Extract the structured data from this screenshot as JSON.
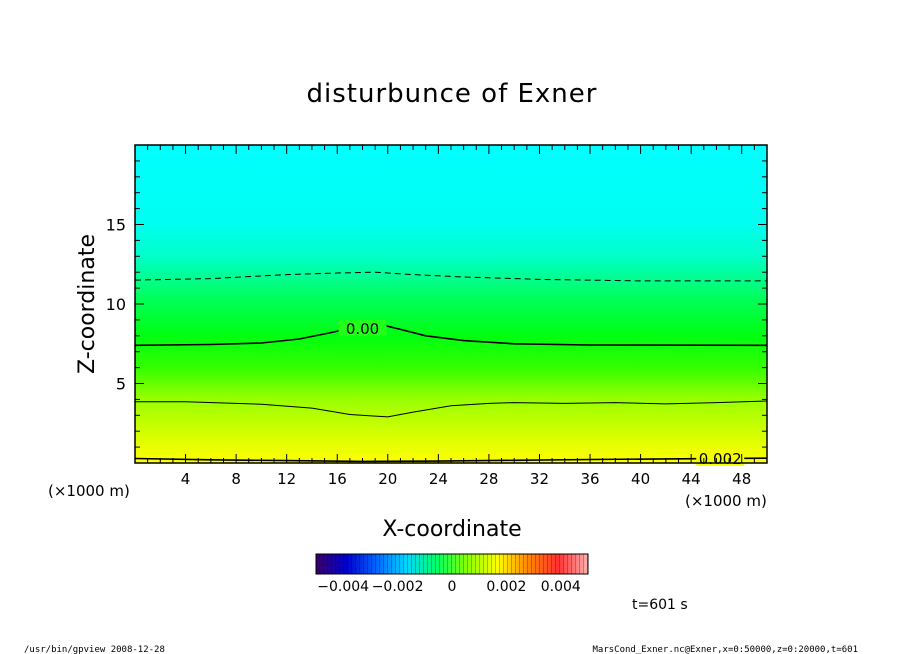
{
  "chart_data": {
    "type": "heatmap",
    "title": "disturbunce of Exner",
    "xlabel": "X-coordinate",
    "ylabel": "Z-coordinate",
    "x_unit_left": "(×1000 m)",
    "x_unit_right": "(×1000 m)",
    "xlim": [
      0,
      50
    ],
    "ylim": [
      0,
      20
    ],
    "x_ticks": [
      4,
      8,
      12,
      16,
      20,
      24,
      28,
      32,
      36,
      40,
      44,
      48
    ],
    "y_ticks": [
      5,
      10,
      15
    ],
    "x_tick_labels": [
      "4",
      "8",
      "12",
      "16",
      "20",
      "24",
      "28",
      "32",
      "36",
      "40",
      "44",
      "48"
    ],
    "y_tick_labels": [
      "5",
      "10",
      "15"
    ],
    "contours": [
      {
        "style": "solid",
        "width": 1.6,
        "label": "0.002",
        "points": [
          [
            0,
            0.28
          ],
          [
            6,
            0.2
          ],
          [
            12,
            0.15
          ],
          [
            18,
            0.1
          ],
          [
            24,
            0.12
          ],
          [
            30,
            0.17
          ],
          [
            36,
            0.22
          ],
          [
            42,
            0.26
          ],
          [
            50,
            0.3
          ]
        ]
      },
      {
        "style": "solid",
        "width": 1.0,
        "label": "",
        "points": [
          [
            0,
            3.85
          ],
          [
            4,
            3.85
          ],
          [
            10,
            3.7
          ],
          [
            14,
            3.45
          ],
          [
            17,
            3.05
          ],
          [
            19,
            2.95
          ],
          [
            20,
            2.9
          ],
          [
            22,
            3.2
          ],
          [
            25,
            3.6
          ],
          [
            28,
            3.75
          ],
          [
            30,
            3.8
          ],
          [
            34,
            3.75
          ],
          [
            38,
            3.8
          ],
          [
            42,
            3.72
          ],
          [
            46,
            3.8
          ],
          [
            50,
            3.9
          ]
        ]
      },
      {
        "style": "solid",
        "width": 1.6,
        "label": "0.00",
        "points": [
          [
            0,
            7.4
          ],
          [
            6,
            7.45
          ],
          [
            10,
            7.55
          ],
          [
            13,
            7.8
          ],
          [
            15.5,
            8.2
          ],
          [
            18,
            8.65
          ],
          [
            19.5,
            8.7
          ],
          [
            21,
            8.4
          ],
          [
            23,
            8.0
          ],
          [
            26,
            7.7
          ],
          [
            30,
            7.5
          ],
          [
            36,
            7.42
          ],
          [
            50,
            7.4
          ]
        ]
      },
      {
        "style": "dashed",
        "width": 1.0,
        "label": "",
        "points": [
          [
            0,
            11.5
          ],
          [
            6,
            11.6
          ],
          [
            12,
            11.85
          ],
          [
            16,
            11.95
          ],
          [
            19,
            12.0
          ],
          [
            22,
            11.85
          ],
          [
            26,
            11.7
          ],
          [
            32,
            11.55
          ],
          [
            40,
            11.45
          ],
          [
            50,
            11.45
          ]
        ]
      }
    ],
    "colorbar": {
      "vmin": -0.005,
      "vmax": 0.005,
      "tick_values": [
        -0.004,
        -0.002,
        0,
        0.002,
        0.004
      ],
      "tick_labels": [
        "−0.004",
        "−0.002",
        "0",
        "0.002",
        "0.004"
      ],
      "colors": [
        "#3a006a",
        "#0000cc",
        "#0066ff",
        "#00d8ff",
        "#00ff66",
        "#88ff00",
        "#ffff00",
        "#ff8800",
        "#ff3030",
        "#ffb0b0"
      ]
    },
    "field_colors_by_z": [
      {
        "z": 0,
        "color": "#ffff00"
      },
      {
        "z": 1.5,
        "color": "#ddff00"
      },
      {
        "z": 4,
        "color": "#99ff00"
      },
      {
        "z": 6,
        "color": "#33ff00"
      },
      {
        "z": 8,
        "color": "#00ff10"
      },
      {
        "z": 10.5,
        "color": "#00ff60"
      },
      {
        "z": 13,
        "color": "#00ffc8"
      },
      {
        "z": 15,
        "color": "#00fff0"
      },
      {
        "z": 20,
        "color": "#00ffff"
      }
    ]
  },
  "annotations": {
    "time": "t=601 s",
    "footer_left": "/usr/bin/gpview   2008-12-28",
    "footer_right": "MarsCond_Exner.nc@Exner,x=0:50000,z=0:20000,t=601"
  }
}
